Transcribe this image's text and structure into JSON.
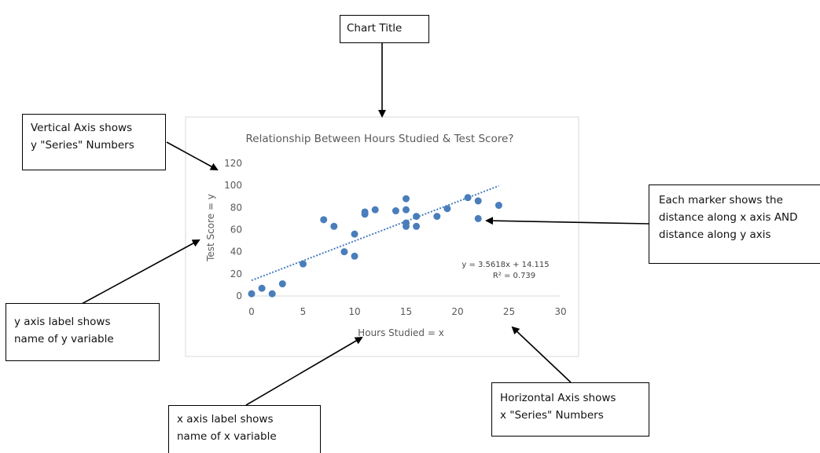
{
  "callouts": {
    "chart_title": [
      "Chart Title"
    ],
    "vertical_axis": [
      "Vertical Axis shows",
      "y \"Series\" Numbers"
    ],
    "y_axis_label": [
      "y axis label shows",
      "name of y variable"
    ],
    "x_axis_label": [
      "x axis label shows",
      "name of x variable"
    ],
    "horizontal_axis": [
      "Horizontal Axis shows",
      "x \"Series\" Numbers"
    ],
    "marker": [
      "Each marker shows the",
      "distance along x axis AND",
      "distance along y axis"
    ]
  },
  "colors": {
    "marker": "#4a7ebb",
    "trendline": "#4a7ebb",
    "axis_text": "#595959",
    "gridline": "#d9d9d9",
    "chart_border": "#d9d9d9"
  },
  "chart_data": {
    "type": "scatter",
    "title": "Relationship Between Hours Studied & Test Score?",
    "xlabel": "Hours Studied = x",
    "ylabel": "Test Score = y",
    "xlim": [
      0,
      30
    ],
    "ylim": [
      0,
      120
    ],
    "xticks": [
      0,
      5,
      10,
      15,
      20,
      25,
      30
    ],
    "yticks": [
      0,
      20,
      40,
      60,
      80,
      100,
      120
    ],
    "grid": false,
    "points": [
      [
        0,
        2
      ],
      [
        1,
        7
      ],
      [
        2,
        2
      ],
      [
        3,
        11
      ],
      [
        5,
        29
      ],
      [
        7,
        69
      ],
      [
        8,
        63
      ],
      [
        9,
        40
      ],
      [
        10,
        56
      ],
      [
        10,
        36
      ],
      [
        11,
        76
      ],
      [
        11,
        74
      ],
      [
        12,
        78
      ],
      [
        14,
        77
      ],
      [
        15,
        88
      ],
      [
        15,
        78
      ],
      [
        15,
        66
      ],
      [
        15,
        63
      ],
      [
        16,
        72
      ],
      [
        16,
        63
      ],
      [
        18,
        72
      ],
      [
        19,
        79
      ],
      [
        21,
        89
      ],
      [
        22,
        86
      ],
      [
        22,
        70
      ],
      [
        24,
        82
      ]
    ],
    "trendline": {
      "type": "linear",
      "slope": 3.5618,
      "intercept": 14.115,
      "x_range": [
        0,
        24
      ],
      "equation": "y = 3.5618x + 14.115",
      "r_squared": "R² = 0.739"
    }
  }
}
